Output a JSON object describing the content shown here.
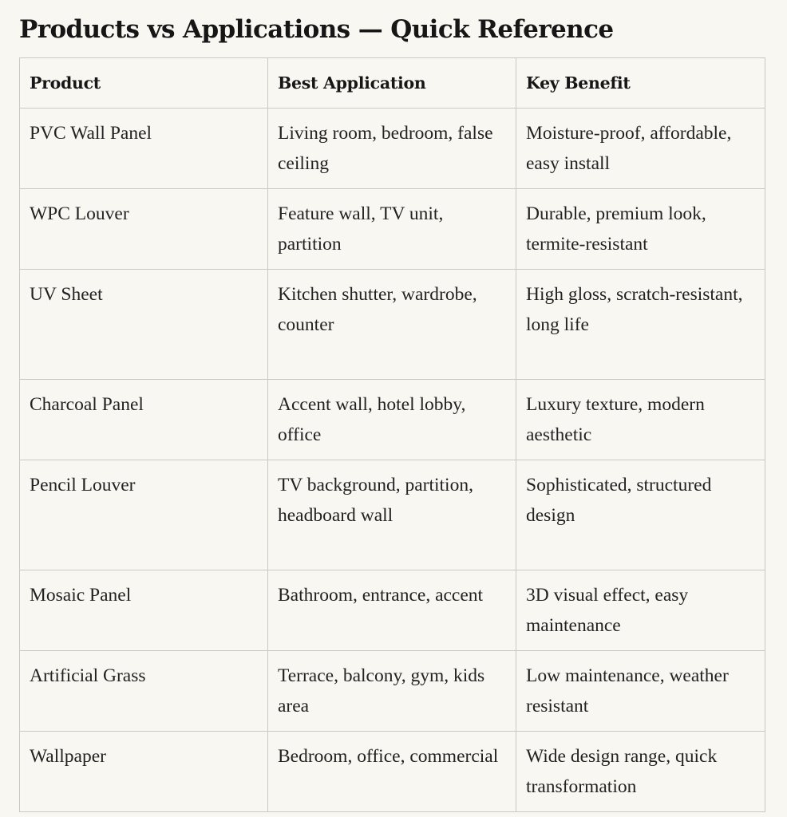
{
  "title": "Products vs Applications — Quick Reference",
  "columns": [
    "Product",
    "Best Application",
    "Key Benefit"
  ],
  "rows": [
    {
      "product": "PVC Wall Panel",
      "application": "Living room, bedroom, false ceiling",
      "benefit": "Moisture-proof, affordable, easy install"
    },
    {
      "product": "WPC Louver",
      "application": "Feature wall, TV unit, partition",
      "benefit": "Durable, premium look, termite-resistant"
    },
    {
      "product": "UV Sheet",
      "application": "Kitchen shutter, wardrobe, counter",
      "benefit": "High gloss, scratch-resistant, long life"
    },
    {
      "product": "Charcoal Panel",
      "application": "Accent wall, hotel lobby, office",
      "benefit": "Luxury texture, modern aesthetic"
    },
    {
      "product": "Pencil Louver",
      "application": "TV background, partition, headboard wall",
      "benefit": "Sophisticated, structured design"
    },
    {
      "product": "Mosaic Panel",
      "application": "Bathroom, entrance, accent",
      "benefit": "3D visual effect, easy maintenance"
    },
    {
      "product": "Artificial Grass",
      "application": "Terrace, balcony, gym, kids area",
      "benefit": "Low maintenance, weather resistant"
    },
    {
      "product": "Wallpaper",
      "application": "Bedroom, office, commercial",
      "benefit": "Wide design range, quick transformation"
    }
  ]
}
